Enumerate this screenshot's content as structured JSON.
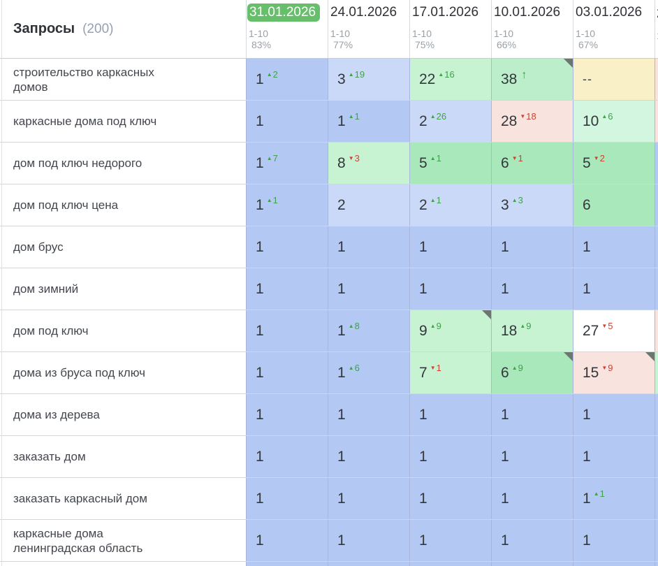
{
  "palette": {
    "blue1": "#b4c8f4",
    "blue2": "#cbd9f8",
    "green1": "#a9e8ba",
    "green2": "#c8f3d3",
    "green3": "#d2f6df",
    "green4": "#bceecb",
    "yellow": "#faf0c8",
    "pink": "#f8e3de",
    "white": "#ffffff",
    "badge_green": "#67bf6c",
    "delta_up": "#3fa14a",
    "delta_down": "#cc4132",
    "corner_marker": "#6b7670"
  },
  "header": {
    "title": "Запросы",
    "count": "(200)",
    "columns": [
      {
        "date": "31.01.2026",
        "range": "1-10",
        "percent": "83%",
        "selected": true
      },
      {
        "date": "24.01.2026",
        "range": "1-10",
        "percent": "77%",
        "selected": false
      },
      {
        "date": "17.01.2026",
        "range": "1-10",
        "percent": "75%",
        "selected": false
      },
      {
        "date": "10.01.2026",
        "range": "1-10",
        "percent": "66%",
        "selected": false
      },
      {
        "date": "03.01.2026",
        "range": "1-10",
        "percent": "67%",
        "selected": false
      }
    ],
    "clipped_next_column": {
      "date_fragment": "2",
      "sub_fragment": "1"
    }
  },
  "rows": [
    {
      "keyword": "строительство каркасных домов",
      "cells": [
        {
          "pos": "1",
          "delta": "2",
          "dir": "up",
          "bg": "blue1"
        },
        {
          "pos": "3",
          "delta": "19",
          "dir": "up",
          "bg": "blue2"
        },
        {
          "pos": "22",
          "delta": "16",
          "dir": "up",
          "bg": "green2"
        },
        {
          "pos": "38",
          "thin": "up",
          "bg": "green4",
          "corner": true
        },
        {
          "pos": "--",
          "bg": "yellow"
        }
      ],
      "sliver": "pink"
    },
    {
      "keyword": "каркасные дома под ключ",
      "cells": [
        {
          "pos": "1",
          "bg": "blue1"
        },
        {
          "pos": "1",
          "delta": "1",
          "dir": "up",
          "bg": "blue1"
        },
        {
          "pos": "2",
          "delta": "26",
          "dir": "up",
          "bg": "blue2"
        },
        {
          "pos": "28",
          "delta": "18",
          "dir": "down",
          "bg": "pink"
        },
        {
          "pos": "10",
          "delta": "6",
          "dir": "up",
          "bg": "green3"
        }
      ],
      "sliver": "pink"
    },
    {
      "keyword": "дом под ключ недорого",
      "cells": [
        {
          "pos": "1",
          "delta": "7",
          "dir": "up",
          "bg": "blue1"
        },
        {
          "pos": "8",
          "delta": "3",
          "dir": "down",
          "bg": "green2"
        },
        {
          "pos": "5",
          "delta": "1",
          "dir": "up",
          "bg": "green1"
        },
        {
          "pos": "6",
          "delta": "1",
          "dir": "down",
          "bg": "green1"
        },
        {
          "pos": "5",
          "delta": "2",
          "dir": "down",
          "bg": "green1"
        }
      ],
      "sliver": "blue1"
    },
    {
      "keyword": "дом под ключ цена",
      "cells": [
        {
          "pos": "1",
          "delta": "1",
          "dir": "up",
          "bg": "blue1"
        },
        {
          "pos": "2",
          "bg": "blue2"
        },
        {
          "pos": "2",
          "delta": "1",
          "dir": "up",
          "bg": "blue2"
        },
        {
          "pos": "3",
          "delta": "3",
          "dir": "up",
          "bg": "blue2"
        },
        {
          "pos": "6",
          "bg": "green1"
        }
      ],
      "sliver": "blue1"
    },
    {
      "keyword": "дом брус",
      "cells": [
        {
          "pos": "1",
          "bg": "blue1"
        },
        {
          "pos": "1",
          "bg": "blue1"
        },
        {
          "pos": "1",
          "bg": "blue1"
        },
        {
          "pos": "1",
          "bg": "blue1"
        },
        {
          "pos": "1",
          "bg": "blue1"
        }
      ],
      "sliver": "blue1"
    },
    {
      "keyword": "дом зимний",
      "cells": [
        {
          "pos": "1",
          "bg": "blue1"
        },
        {
          "pos": "1",
          "bg": "blue1"
        },
        {
          "pos": "1",
          "bg": "blue1"
        },
        {
          "pos": "1",
          "bg": "blue1"
        },
        {
          "pos": "1",
          "bg": "blue1"
        }
      ],
      "sliver": "blue1"
    },
    {
      "keyword": "дом под ключ",
      "cells": [
        {
          "pos": "1",
          "bg": "blue1"
        },
        {
          "pos": "1",
          "delta": "8",
          "dir": "up",
          "bg": "blue1"
        },
        {
          "pos": "9",
          "delta": "9",
          "dir": "up",
          "bg": "green2",
          "corner": true
        },
        {
          "pos": "18",
          "delta": "9",
          "dir": "up",
          "bg": "green2"
        },
        {
          "pos": "27",
          "delta": "5",
          "dir": "down",
          "bg": "white"
        }
      ],
      "sliver": "pink"
    },
    {
      "keyword": "дома из бруса под ключ",
      "cells": [
        {
          "pos": "1",
          "bg": "blue1"
        },
        {
          "pos": "1",
          "delta": "6",
          "dir": "up",
          "bg": "blue1"
        },
        {
          "pos": "7",
          "delta": "1",
          "dir": "down",
          "bg": "green2"
        },
        {
          "pos": "6",
          "delta": "9",
          "dir": "up",
          "bg": "green1",
          "corner": true
        },
        {
          "pos": "15",
          "delta": "9",
          "dir": "down",
          "bg": "pink",
          "corner": true
        }
      ],
      "sliver": "green2"
    },
    {
      "keyword": "дома из дерева",
      "cells": [
        {
          "pos": "1",
          "bg": "blue1"
        },
        {
          "pos": "1",
          "bg": "blue1"
        },
        {
          "pos": "1",
          "bg": "blue1"
        },
        {
          "pos": "1",
          "bg": "blue1"
        },
        {
          "pos": "1",
          "bg": "blue1"
        }
      ],
      "sliver": "blue1"
    },
    {
      "keyword": "заказать дом",
      "cells": [
        {
          "pos": "1",
          "bg": "blue1"
        },
        {
          "pos": "1",
          "bg": "blue1"
        },
        {
          "pos": "1",
          "bg": "blue1"
        },
        {
          "pos": "1",
          "bg": "blue1"
        },
        {
          "pos": "1",
          "bg": "blue1"
        }
      ],
      "sliver": "blue1"
    },
    {
      "keyword": "заказать каркасный дом",
      "cells": [
        {
          "pos": "1",
          "bg": "blue1"
        },
        {
          "pos": "1",
          "bg": "blue1"
        },
        {
          "pos": "1",
          "bg": "blue1"
        },
        {
          "pos": "1",
          "bg": "blue1"
        },
        {
          "pos": "1",
          "delta": "1",
          "dir": "up",
          "bg": "blue1"
        }
      ],
      "sliver": "blue1"
    },
    {
      "keyword": "каркасные дома ленинградская область",
      "cells": [
        {
          "pos": "1",
          "bg": "blue1"
        },
        {
          "pos": "1",
          "bg": "blue1"
        },
        {
          "pos": "1",
          "bg": "blue1"
        },
        {
          "pos": "1",
          "bg": "blue1"
        },
        {
          "pos": "1",
          "bg": "blue1"
        }
      ],
      "sliver": "blue1"
    }
  ],
  "partial_row": {
    "bg": "blue1",
    "sliver": "blue1"
  }
}
